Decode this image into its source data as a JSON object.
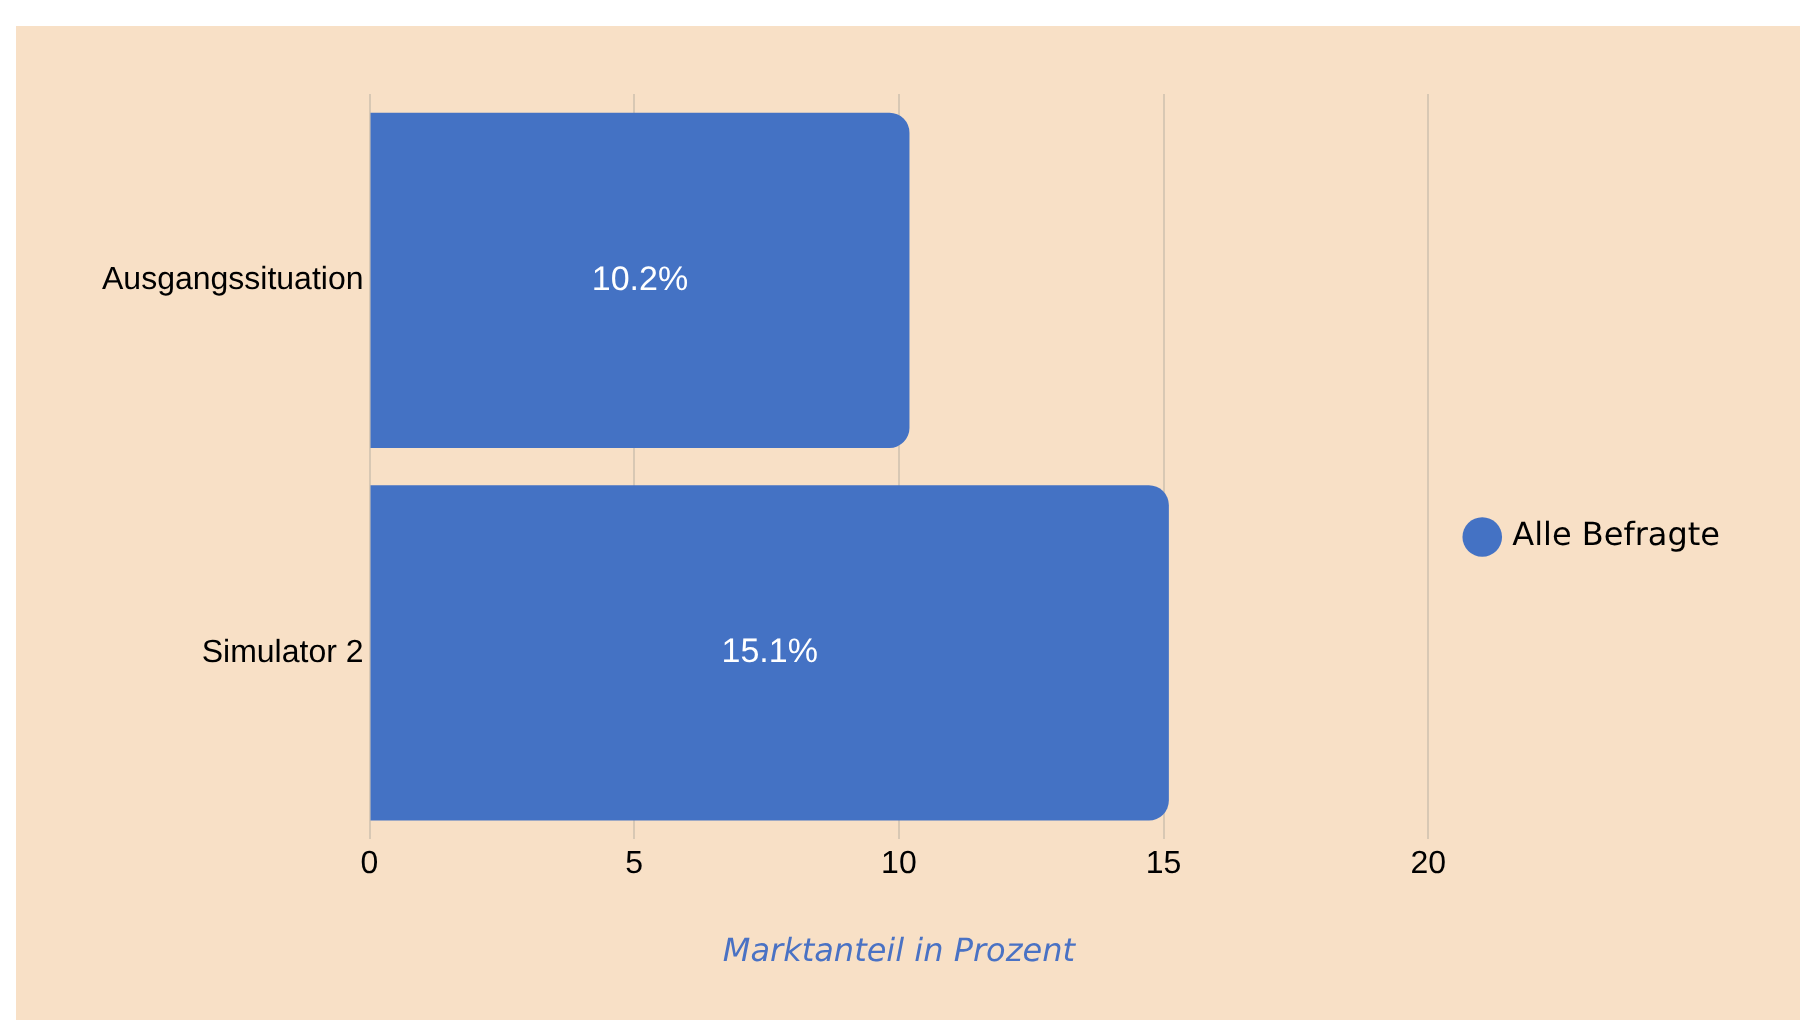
{
  "chart_data": {
    "type": "bar",
    "orientation": "horizontal",
    "xlabel": "Marktanteil in Prozent",
    "categories": [
      "Ausgangssituation",
      "Simulator 2"
    ],
    "series": [
      {
        "name": "Alle Befragte",
        "color": "#4472c4",
        "values": [
          10.2,
          15.1
        ],
        "value_labels": [
          "10.2%",
          "15.1%"
        ]
      }
    ],
    "xlim": [
      0,
      20
    ],
    "xticks": [
      0,
      5,
      10,
      15,
      20
    ],
    "grid": "x",
    "legend": "right"
  }
}
